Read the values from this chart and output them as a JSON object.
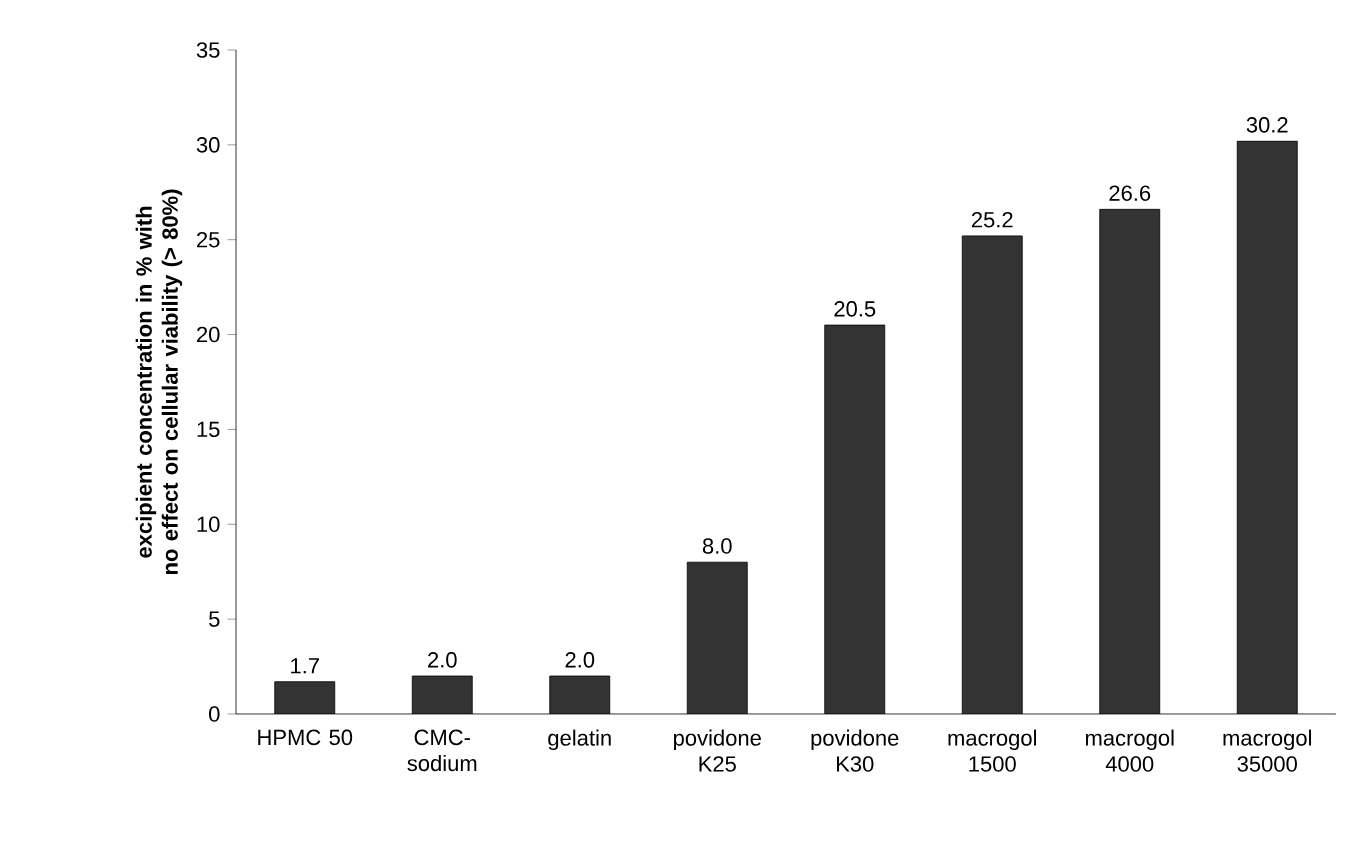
{
  "chart_data": {
    "type": "bar",
    "ylabel": "excipient concentration in % with no effect on cellular viability (> 80%)",
    "categories": [
      "HPMC 50",
      "CMC-sodium",
      "gelatin",
      "povidone K25",
      "povidone K30",
      "macrogol 1500",
      "macrogol 4000",
      "macrogol 35000"
    ],
    "values": [
      1.7,
      2.0,
      2.0,
      8.0,
      20.5,
      25.2,
      26.6,
      30.2
    ],
    "value_labels": [
      "1.7",
      "2.0",
      "2.0",
      "8.0",
      "20.5",
      "25.2",
      "26.6",
      "30.2"
    ],
    "color": "#333333",
    "ylim": [
      0,
      35
    ],
    "yticks": [
      0,
      5,
      10,
      15,
      20,
      25,
      30,
      35
    ],
    "grid": false
  }
}
